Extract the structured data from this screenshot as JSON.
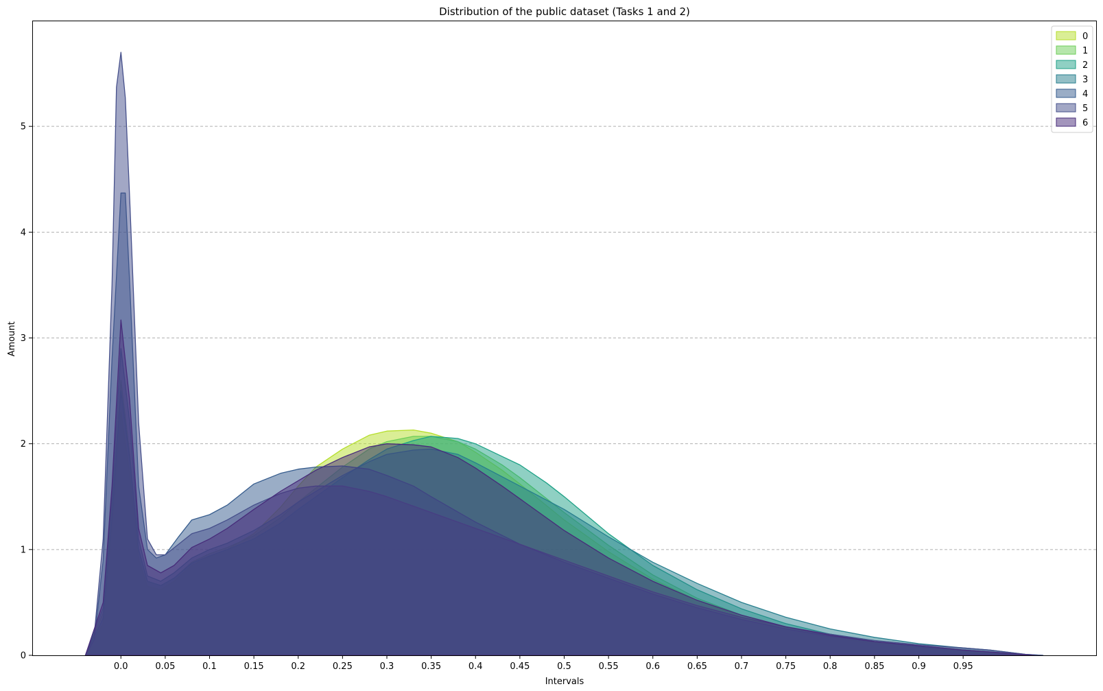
{
  "chart_data": {
    "type": "area",
    "title": "Distribution of the public dataset (Tasks 1 and 2)",
    "xlabel": "Intervals",
    "ylabel": "Amount",
    "xlim": [
      -0.1,
      1.1
    ],
    "ylim": [
      0,
      6.0
    ],
    "x_ticks": [
      "0.0",
      "0.05",
      "0.1",
      "0.15",
      "0.2",
      "0.25",
      "0.3",
      "0.35",
      "0.4",
      "0.45",
      "0.5",
      "0.55",
      "0.6",
      "0.65",
      "0.7",
      "0.75",
      "0.8",
      "0.85",
      "0.9",
      "0.95"
    ],
    "y_ticks": [
      "0",
      "1",
      "2",
      "3",
      "4",
      "5"
    ],
    "grid": "horizontal dashed",
    "legend_position": "top-right",
    "series": [
      {
        "name": "0",
        "color": "#b5de2b",
        "points": [
          [
            -0.04,
            0
          ],
          [
            -0.02,
            0.3
          ],
          [
            -0.01,
            1.2
          ],
          [
            0,
            2.3
          ],
          [
            0.01,
            1.7
          ],
          [
            0.02,
            0.9
          ],
          [
            0.03,
            0.65
          ],
          [
            0.045,
            0.62
          ],
          [
            0.06,
            0.7
          ],
          [
            0.08,
            0.85
          ],
          [
            0.1,
            0.93
          ],
          [
            0.12,
            1.0
          ],
          [
            0.15,
            1.15
          ],
          [
            0.18,
            1.4
          ],
          [
            0.2,
            1.6
          ],
          [
            0.22,
            1.78
          ],
          [
            0.25,
            1.95
          ],
          [
            0.28,
            2.08
          ],
          [
            0.3,
            2.12
          ],
          [
            0.33,
            2.13
          ],
          [
            0.35,
            2.1
          ],
          [
            0.38,
            2.02
          ],
          [
            0.4,
            1.92
          ],
          [
            0.43,
            1.75
          ],
          [
            0.45,
            1.62
          ],
          [
            0.5,
            1.28
          ],
          [
            0.55,
            0.98
          ],
          [
            0.6,
            0.72
          ],
          [
            0.65,
            0.52
          ],
          [
            0.7,
            0.36
          ],
          [
            0.75,
            0.25
          ],
          [
            0.8,
            0.17
          ],
          [
            0.85,
            0.11
          ],
          [
            0.9,
            0.07
          ],
          [
            0.95,
            0.04
          ],
          [
            1.0,
            0.01
          ],
          [
            1.02,
            0
          ]
        ]
      },
      {
        "name": "1",
        "color": "#6ece58",
        "points": [
          [
            -0.04,
            0
          ],
          [
            -0.02,
            0.4
          ],
          [
            -0.01,
            1.4
          ],
          [
            0,
            2.6
          ],
          [
            0.01,
            1.9
          ],
          [
            0.02,
            1.0
          ],
          [
            0.03,
            0.7
          ],
          [
            0.045,
            0.66
          ],
          [
            0.06,
            0.73
          ],
          [
            0.08,
            0.88
          ],
          [
            0.1,
            0.96
          ],
          [
            0.12,
            1.02
          ],
          [
            0.15,
            1.13
          ],
          [
            0.18,
            1.3
          ],
          [
            0.2,
            1.45
          ],
          [
            0.25,
            1.78
          ],
          [
            0.28,
            1.95
          ],
          [
            0.3,
            2.02
          ],
          [
            0.33,
            2.07
          ],
          [
            0.35,
            2.07
          ],
          [
            0.38,
            2.02
          ],
          [
            0.4,
            1.95
          ],
          [
            0.43,
            1.8
          ],
          [
            0.45,
            1.68
          ],
          [
            0.5,
            1.35
          ],
          [
            0.55,
            1.04
          ],
          [
            0.6,
            0.76
          ],
          [
            0.65,
            0.54
          ],
          [
            0.7,
            0.38
          ],
          [
            0.75,
            0.26
          ],
          [
            0.8,
            0.18
          ],
          [
            0.85,
            0.12
          ],
          [
            0.9,
            0.08
          ],
          [
            0.95,
            0.05
          ],
          [
            1.0,
            0.02
          ],
          [
            1.03,
            0
          ]
        ]
      },
      {
        "name": "2",
        "color": "#1fa187",
        "points": [
          [
            -0.04,
            0
          ],
          [
            -0.02,
            0.35
          ],
          [
            -0.01,
            1.3
          ],
          [
            0,
            2.5
          ],
          [
            0.01,
            1.85
          ],
          [
            0.02,
            1.0
          ],
          [
            0.03,
            0.7
          ],
          [
            0.045,
            0.66
          ],
          [
            0.06,
            0.73
          ],
          [
            0.08,
            0.87
          ],
          [
            0.1,
            0.94
          ],
          [
            0.12,
            1.0
          ],
          [
            0.15,
            1.1
          ],
          [
            0.18,
            1.25
          ],
          [
            0.2,
            1.38
          ],
          [
            0.25,
            1.68
          ],
          [
            0.28,
            1.85
          ],
          [
            0.3,
            1.95
          ],
          [
            0.33,
            2.03
          ],
          [
            0.35,
            2.07
          ],
          [
            0.38,
            2.05
          ],
          [
            0.4,
            2.0
          ],
          [
            0.43,
            1.88
          ],
          [
            0.45,
            1.8
          ],
          [
            0.48,
            1.63
          ],
          [
            0.5,
            1.5
          ],
          [
            0.55,
            1.15
          ],
          [
            0.6,
            0.85
          ],
          [
            0.65,
            0.62
          ],
          [
            0.7,
            0.44
          ],
          [
            0.75,
            0.3
          ],
          [
            0.8,
            0.2
          ],
          [
            0.85,
            0.13
          ],
          [
            0.9,
            0.08
          ],
          [
            0.95,
            0.05
          ],
          [
            1.0,
            0.02
          ],
          [
            1.03,
            0
          ]
        ]
      },
      {
        "name": "3",
        "color": "#277f8e",
        "points": [
          [
            -0.04,
            0
          ],
          [
            -0.02,
            0.45
          ],
          [
            -0.01,
            1.5
          ],
          [
            0,
            2.9
          ],
          [
            0.01,
            2.2
          ],
          [
            0.02,
            1.1
          ],
          [
            0.03,
            0.75
          ],
          [
            0.045,
            0.7
          ],
          [
            0.06,
            0.78
          ],
          [
            0.08,
            0.92
          ],
          [
            0.1,
            1.0
          ],
          [
            0.12,
            1.06
          ],
          [
            0.15,
            1.18
          ],
          [
            0.18,
            1.33
          ],
          [
            0.2,
            1.45
          ],
          [
            0.25,
            1.7
          ],
          [
            0.28,
            1.83
          ],
          [
            0.3,
            1.9
          ],
          [
            0.33,
            1.94
          ],
          [
            0.35,
            1.95
          ],
          [
            0.38,
            1.9
          ],
          [
            0.4,
            1.82
          ],
          [
            0.45,
            1.6
          ],
          [
            0.5,
            1.38
          ],
          [
            0.55,
            1.12
          ],
          [
            0.6,
            0.88
          ],
          [
            0.65,
            0.68
          ],
          [
            0.7,
            0.5
          ],
          [
            0.75,
            0.36
          ],
          [
            0.8,
            0.25
          ],
          [
            0.85,
            0.17
          ],
          [
            0.9,
            0.11
          ],
          [
            0.95,
            0.07
          ],
          [
            0.98,
            0.05
          ],
          [
            1.02,
            0.01
          ],
          [
            1.04,
            0
          ]
        ]
      },
      {
        "name": "4",
        "color": "#365c8d",
        "points": [
          [
            -0.04,
            0
          ],
          [
            -0.03,
            0.15
          ],
          [
            -0.02,
            0.9
          ],
          [
            -0.01,
            2.8
          ],
          [
            0,
            4.37
          ],
          [
            0.005,
            4.37
          ],
          [
            0.01,
            3.5
          ],
          [
            0.02,
            1.6
          ],
          [
            0.03,
            1.0
          ],
          [
            0.04,
            0.92
          ],
          [
            0.05,
            0.95
          ],
          [
            0.065,
            1.12
          ],
          [
            0.08,
            1.28
          ],
          [
            0.1,
            1.33
          ],
          [
            0.12,
            1.42
          ],
          [
            0.15,
            1.62
          ],
          [
            0.18,
            1.72
          ],
          [
            0.2,
            1.76
          ],
          [
            0.22,
            1.78
          ],
          [
            0.25,
            1.79
          ],
          [
            0.28,
            1.76
          ],
          [
            0.3,
            1.7
          ],
          [
            0.33,
            1.6
          ],
          [
            0.35,
            1.5
          ],
          [
            0.4,
            1.26
          ],
          [
            0.45,
            1.05
          ],
          [
            0.5,
            0.88
          ],
          [
            0.55,
            0.73
          ],
          [
            0.6,
            0.58
          ],
          [
            0.65,
            0.45
          ],
          [
            0.7,
            0.34
          ],
          [
            0.75,
            0.25
          ],
          [
            0.8,
            0.18
          ],
          [
            0.85,
            0.13
          ],
          [
            0.9,
            0.09
          ],
          [
            0.95,
            0.05
          ],
          [
            0.98,
            0.03
          ],
          [
            1.01,
            0
          ]
        ]
      },
      {
        "name": "5",
        "color": "#46508b",
        "points": [
          [
            -0.04,
            0
          ],
          [
            -0.03,
            0.2
          ],
          [
            -0.02,
            1.1
          ],
          [
            -0.01,
            3.5
          ],
          [
            -0.005,
            5.37
          ],
          [
            0,
            5.7
          ],
          [
            0.005,
            5.27
          ],
          [
            0.01,
            4.3
          ],
          [
            0.02,
            2.2
          ],
          [
            0.03,
            1.1
          ],
          [
            0.04,
            0.95
          ],
          [
            0.05,
            0.95
          ],
          [
            0.065,
            1.05
          ],
          [
            0.08,
            1.15
          ],
          [
            0.1,
            1.2
          ],
          [
            0.12,
            1.28
          ],
          [
            0.15,
            1.42
          ],
          [
            0.18,
            1.53
          ],
          [
            0.2,
            1.58
          ],
          [
            0.22,
            1.6
          ],
          [
            0.25,
            1.6
          ],
          [
            0.28,
            1.55
          ],
          [
            0.3,
            1.5
          ],
          [
            0.35,
            1.35
          ],
          [
            0.4,
            1.2
          ],
          [
            0.45,
            1.05
          ],
          [
            0.5,
            0.9
          ],
          [
            0.55,
            0.75
          ],
          [
            0.6,
            0.6
          ],
          [
            0.65,
            0.47
          ],
          [
            0.7,
            0.36
          ],
          [
            0.75,
            0.27
          ],
          [
            0.8,
            0.2
          ],
          [
            0.85,
            0.14
          ],
          [
            0.9,
            0.1
          ],
          [
            0.95,
            0.07
          ],
          [
            0.98,
            0.05
          ],
          [
            1.02,
            0.01
          ],
          [
            1.04,
            0
          ]
        ]
      },
      {
        "name": "6",
        "color": "#472c7a",
        "points": [
          [
            -0.04,
            0
          ],
          [
            -0.02,
            0.5
          ],
          [
            -0.01,
            1.6
          ],
          [
            0,
            3.17
          ],
          [
            0.01,
            2.4
          ],
          [
            0.02,
            1.2
          ],
          [
            0.03,
            0.85
          ],
          [
            0.045,
            0.78
          ],
          [
            0.06,
            0.85
          ],
          [
            0.08,
            1.02
          ],
          [
            0.1,
            1.1
          ],
          [
            0.12,
            1.2
          ],
          [
            0.15,
            1.38
          ],
          [
            0.18,
            1.55
          ],
          [
            0.2,
            1.65
          ],
          [
            0.22,
            1.75
          ],
          [
            0.25,
            1.87
          ],
          [
            0.28,
            1.97
          ],
          [
            0.3,
            2.0
          ],
          [
            0.33,
            1.99
          ],
          [
            0.35,
            1.97
          ],
          [
            0.38,
            1.87
          ],
          [
            0.4,
            1.77
          ],
          [
            0.43,
            1.6
          ],
          [
            0.45,
            1.48
          ],
          [
            0.5,
            1.18
          ],
          [
            0.55,
            0.92
          ],
          [
            0.6,
            0.7
          ],
          [
            0.65,
            0.52
          ],
          [
            0.7,
            0.38
          ],
          [
            0.75,
            0.27
          ],
          [
            0.8,
            0.19
          ],
          [
            0.85,
            0.13
          ],
          [
            0.9,
            0.09
          ],
          [
            0.95,
            0.05
          ],
          [
            1.0,
            0.02
          ],
          [
            1.03,
            0
          ]
        ]
      }
    ]
  }
}
